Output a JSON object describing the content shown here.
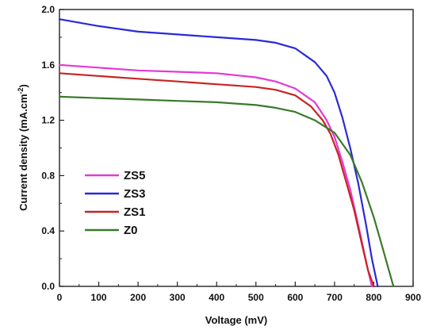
{
  "chart_data": {
    "type": "line",
    "xlabel": "Voltage (mV)",
    "ylabel": "Current density (mA.cm",
    "ylabel_sup": "-2",
    "ylabel_end": ")",
    "xlim": [
      0,
      900
    ],
    "ylim": [
      0.0,
      2.0
    ],
    "xticks": [
      0,
      100,
      200,
      300,
      400,
      500,
      600,
      700,
      800,
      900
    ],
    "yticks": [
      0.0,
      0.4,
      0.8,
      1.2,
      1.6,
      2.0
    ],
    "ytick_labels": [
      "0.0",
      "0.4",
      "0.8",
      "1.2",
      "1.6",
      "2.0"
    ],
    "grid": false,
    "legend_position": "lower-left",
    "series": [
      {
        "name": "ZS5",
        "color": "#e23ad6",
        "x": [
          0,
          100,
          200,
          300,
          400,
          500,
          550,
          600,
          650,
          680,
          700,
          720,
          740,
          760,
          775,
          785,
          795
        ],
        "y": [
          1.6,
          1.58,
          1.56,
          1.55,
          1.54,
          1.51,
          1.48,
          1.43,
          1.33,
          1.2,
          1.08,
          0.9,
          0.7,
          0.45,
          0.25,
          0.12,
          0.0
        ]
      },
      {
        "name": "ZS3",
        "color": "#2a2ad6",
        "x": [
          0,
          100,
          200,
          300,
          400,
          500,
          550,
          600,
          650,
          680,
          700,
          720,
          740,
          760,
          780,
          795,
          810
        ],
        "y": [
          1.93,
          1.88,
          1.84,
          1.82,
          1.8,
          1.78,
          1.76,
          1.72,
          1.62,
          1.52,
          1.4,
          1.22,
          1.0,
          0.75,
          0.45,
          0.2,
          0.0
        ]
      },
      {
        "name": "ZS1",
        "color": "#c82424",
        "x": [
          0,
          100,
          200,
          300,
          400,
          500,
          550,
          600,
          640,
          670,
          690,
          710,
          730,
          750,
          770,
          785,
          800
        ],
        "y": [
          1.54,
          1.52,
          1.5,
          1.48,
          1.46,
          1.44,
          1.42,
          1.38,
          1.3,
          1.2,
          1.1,
          0.95,
          0.75,
          0.55,
          0.3,
          0.12,
          0.0
        ]
      },
      {
        "name": "Z0",
        "color": "#3a7a2a",
        "x": [
          0,
          100,
          200,
          300,
          400,
          500,
          550,
          600,
          650,
          700,
          740,
          770,
          800,
          820,
          835,
          850
        ],
        "y": [
          1.37,
          1.36,
          1.35,
          1.34,
          1.33,
          1.31,
          1.29,
          1.26,
          1.2,
          1.11,
          0.95,
          0.75,
          0.5,
          0.3,
          0.15,
          0.0
        ]
      }
    ]
  }
}
